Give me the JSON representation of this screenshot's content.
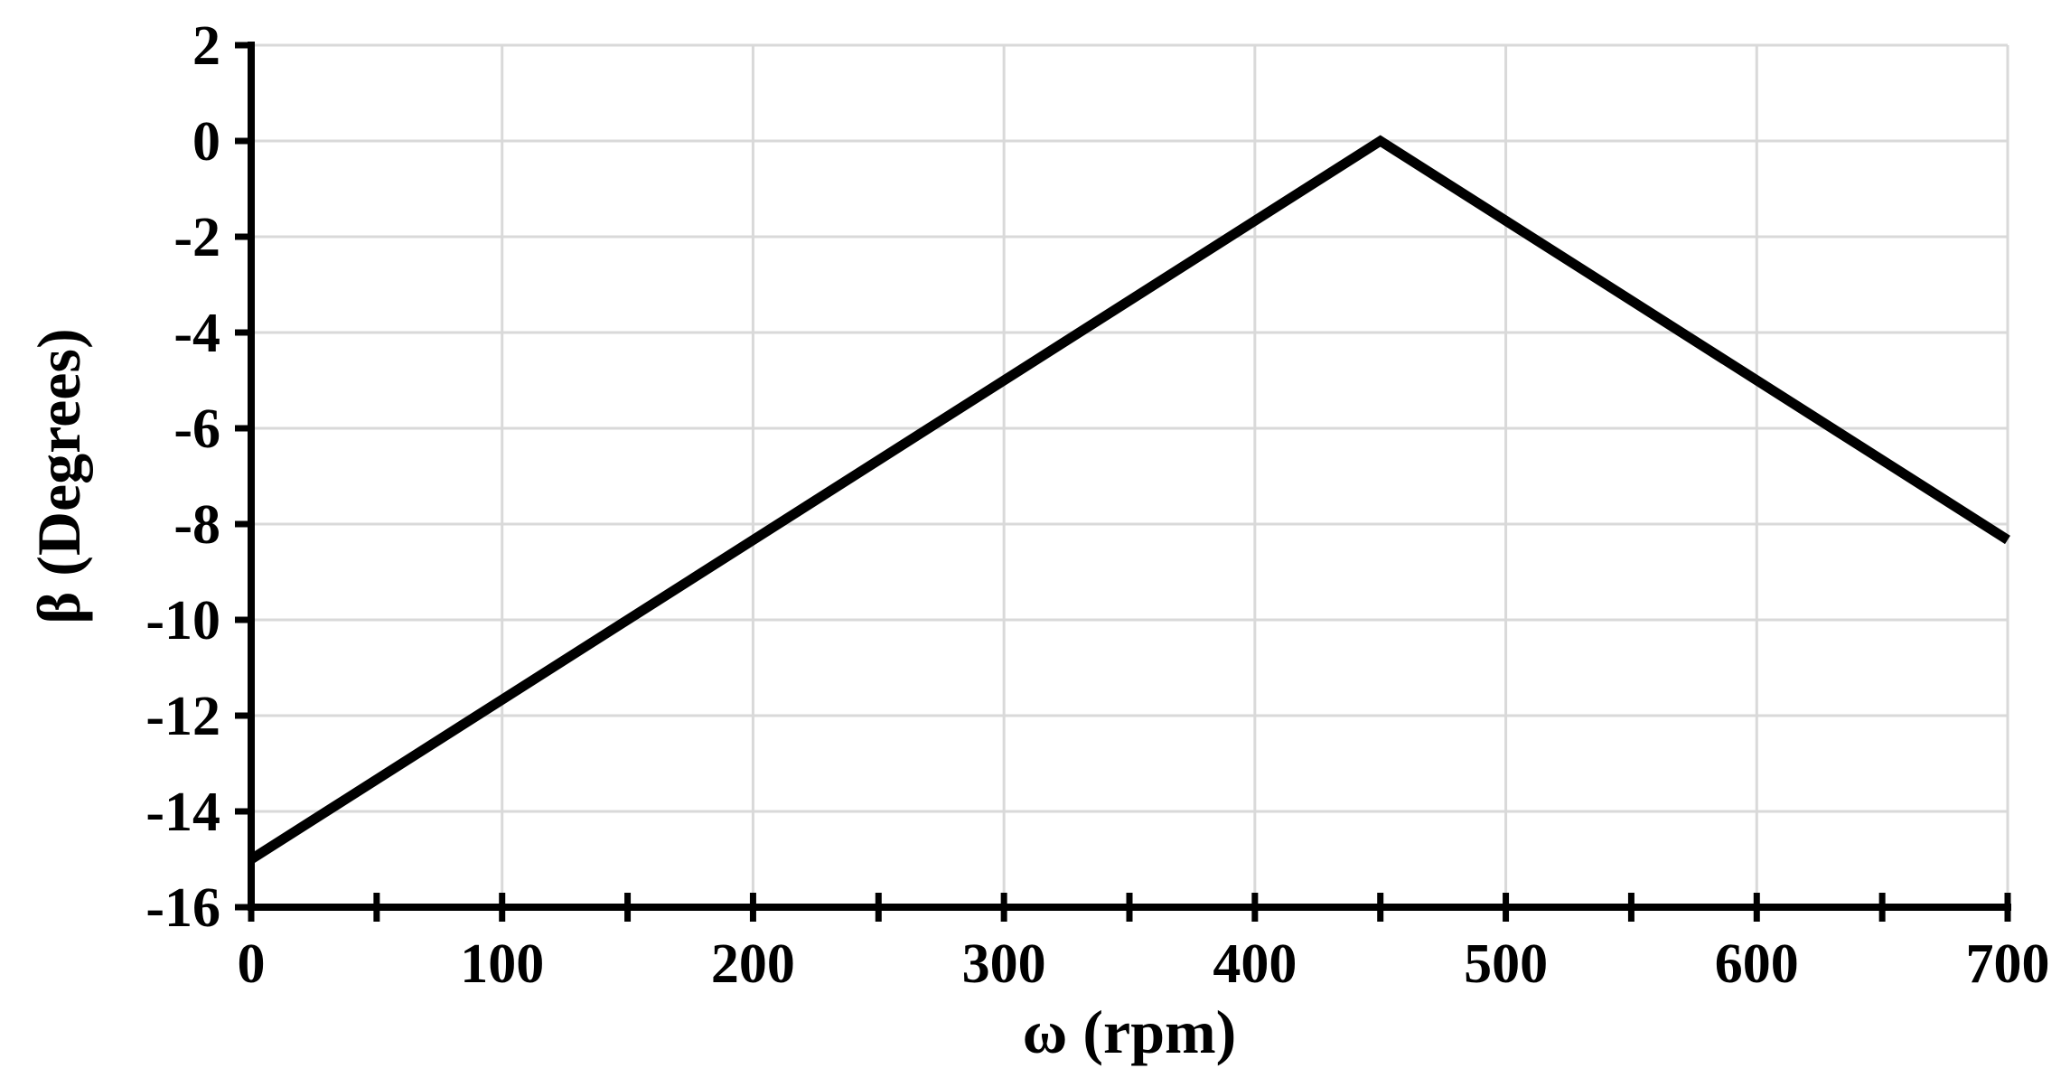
{
  "chart_data": {
    "type": "line",
    "title": "",
    "xlabel": "ω (rpm)",
    "ylabel": "β (Degrees)",
    "xlim": [
      0,
      700
    ],
    "ylim": [
      -16,
      2
    ],
    "xticks": [
      0,
      100,
      200,
      300,
      400,
      500,
      600,
      700
    ],
    "xticks_minor": [
      50,
      150,
      250,
      350,
      450,
      550,
      650
    ],
    "yticks": [
      2,
      0,
      -2,
      -4,
      -6,
      -8,
      -10,
      -12,
      -14,
      -16
    ],
    "xtick_labels": [
      "0",
      "100",
      "200",
      "300",
      "400",
      "500",
      "600",
      "700"
    ],
    "ytick_labels": [
      "2",
      "0",
      "-2",
      "-4",
      "-6",
      "-8",
      "-10",
      "-12",
      "-14",
      "-16"
    ],
    "grid": true,
    "legend": "none",
    "series": [
      {
        "x": [
          0,
          450,
          700
        ],
        "y": [
          -15,
          0,
          -8.33
        ]
      }
    ],
    "colors": {
      "line": "#000000",
      "axis": "#000000",
      "grid": "#d9d9d9",
      "background": "#ffffff"
    }
  }
}
